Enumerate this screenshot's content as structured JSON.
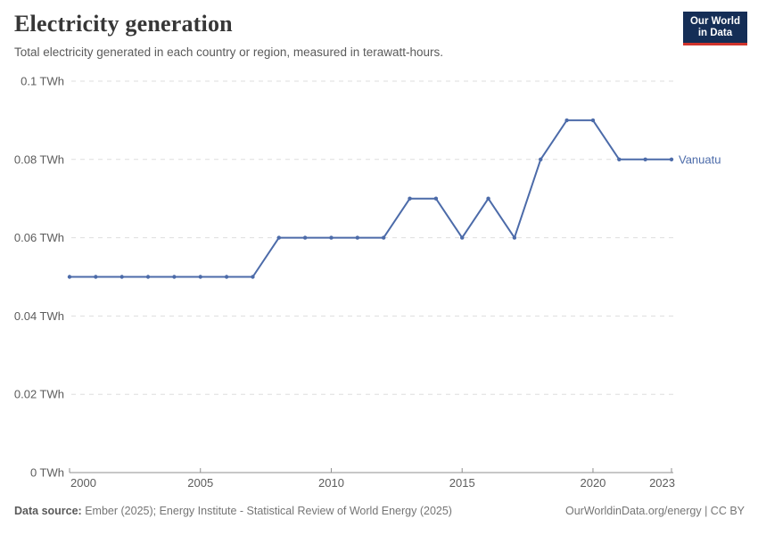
{
  "header": {
    "logo_line1": "Our World",
    "logo_line2": "in Data"
  },
  "footer": {
    "data_source_label": "Data source:",
    "data_source_text": " Ember (2025); Energy Institute - Statistical Review of World Energy (2025)",
    "credit": "OurWorldinData.org/energy | CC BY"
  },
  "colors": {
    "series_blue": "#4c6ba9",
    "logo_navy": "#152e56",
    "logo_red": "#d0342c",
    "grid_gray": "#dedede",
    "axis_gray": "#8f8f8f"
  },
  "chart_data": {
    "type": "line",
    "title": "Electricity generation",
    "subtitle": "Total electricity generated in each country or region, measured in terawatt-hours.",
    "unit": "TWh",
    "grid": "horizontal dashed",
    "legend": "entity label at right end of line",
    "xlim": [
      2000,
      2023
    ],
    "ylim": [
      0,
      0.1
    ],
    "x": [
      2000,
      2001,
      2002,
      2003,
      2004,
      2005,
      2006,
      2007,
      2008,
      2009,
      2010,
      2011,
      2012,
      2013,
      2014,
      2015,
      2016,
      2017,
      2018,
      2019,
      2020,
      2021,
      2022,
      2023
    ],
    "series": [
      {
        "name": "Vanuatu",
        "color": "#4c6ba9",
        "values": [
          0.05,
          0.05,
          0.05,
          0.05,
          0.05,
          0.05,
          0.05,
          0.05,
          0.06,
          0.06,
          0.06,
          0.06,
          0.06,
          0.07,
          0.07,
          0.06,
          0.07,
          0.06,
          0.08,
          0.09,
          0.09,
          0.08,
          0.08,
          0.08
        ]
      }
    ],
    "yticks": [
      {
        "value": 0,
        "label": "0 TWh"
      },
      {
        "value": 0.02,
        "label": "0.02 TWh"
      },
      {
        "value": 0.04,
        "label": "0.04 TWh"
      },
      {
        "value": 0.06,
        "label": "0.06 TWh"
      },
      {
        "value": 0.08,
        "label": "0.08 TWh"
      },
      {
        "value": 0.1,
        "label": "0.1 TWh"
      }
    ],
    "xticks": [
      {
        "value": 2000,
        "label": "2000"
      },
      {
        "value": 2005,
        "label": "2005"
      },
      {
        "value": 2010,
        "label": "2010"
      },
      {
        "value": 2015,
        "label": "2015"
      },
      {
        "value": 2020,
        "label": "2020"
      },
      {
        "value": 2023,
        "label": "2023"
      }
    ]
  }
}
